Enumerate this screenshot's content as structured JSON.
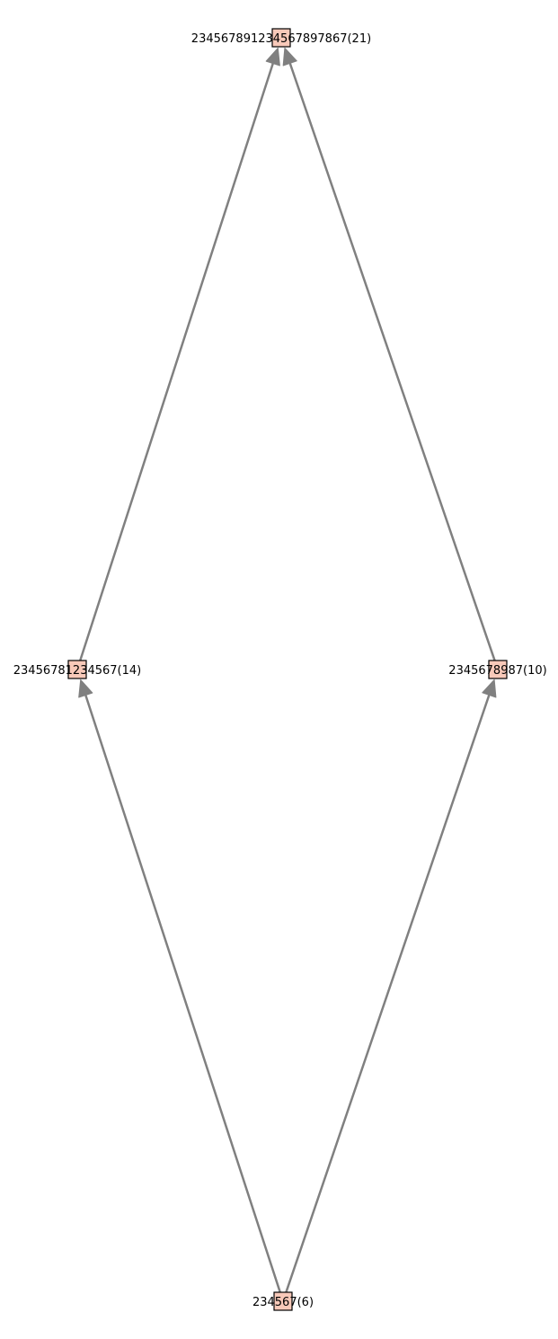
{
  "graph": {
    "nodes": [
      {
        "id": "top",
        "label": "23456789123456789786 7(21)"
      },
      {
        "id": "left",
        "label": "23456781234567(14)"
      },
      {
        "id": "right",
        "label": "2345678987(10)"
      },
      {
        "id": "bottom",
        "label": "234567(6)"
      }
    ],
    "edges": [
      {
        "from": "bottom",
        "to": "left"
      },
      {
        "from": "bottom",
        "to": "right"
      },
      {
        "from": "left",
        "to": "top"
      },
      {
        "from": "right",
        "to": "top"
      }
    ]
  },
  "style": {
    "node_fill": "#f8c9b9",
    "node_border": "#000000",
    "edge_color": "#808080"
  }
}
